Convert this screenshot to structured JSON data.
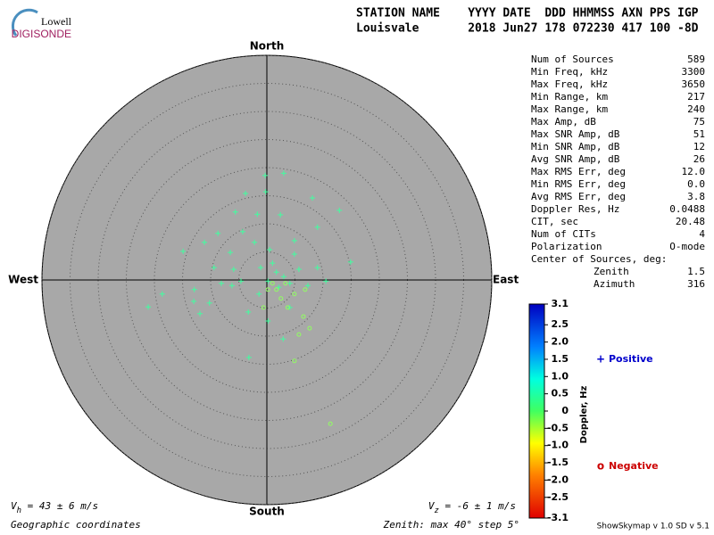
{
  "logo": {
    "top": "Lowell",
    "bottom": "DIGISONDE"
  },
  "header": {
    "line1": "STATION NAME    YYYY DATE  DDD HHMMSS AXN PPS IGP",
    "line2": "Louisvale       2018 Jun27 178 072230 417 100 -8D"
  },
  "stats": [
    [
      "Num of Sources",
      "589"
    ],
    [
      "Min Freq, kHz",
      "3300"
    ],
    [
      "Max Freq, kHz",
      "3650"
    ],
    [
      "Min Range, km",
      "217"
    ],
    [
      "Max Range, km",
      "240"
    ],
    [
      "Max Amp, dB",
      "75"
    ],
    [
      "Max SNR Amp, dB",
      "51"
    ],
    [
      "Min SNR Amp, dB",
      "12"
    ],
    [
      "Avg SNR Amp, dB",
      "26"
    ],
    [
      "Max RMS Err, deg",
      "12.0"
    ],
    [
      "Min RMS Err, deg",
      "0.0"
    ],
    [
      "Avg RMS Err, deg",
      "3.8"
    ],
    [
      "Doppler Res, Hz",
      "0.0488"
    ],
    [
      "CIT, sec",
      "20.48"
    ],
    [
      "Num of CITs",
      "4"
    ],
    [
      "Polarization",
      "O-mode"
    ]
  ],
  "center": {
    "title": "Center of Sources, deg:",
    "rows": [
      [
        "Zenith",
        "1.5"
      ],
      [
        "Azimuth",
        "316"
      ]
    ]
  },
  "chart_data": {
    "type": "scatter",
    "directions": {
      "north": "North",
      "south": "South",
      "east": "East",
      "west": "West"
    },
    "xlim": [
      -40,
      40
    ],
    "ylim": [
      -40,
      40
    ],
    "rings": [
      5,
      10,
      15,
      20,
      25,
      30,
      35,
      40
    ],
    "series": [
      {
        "name": "Positive",
        "marker": "+",
        "color": "#40ffa0",
        "legend_color": "#0000cc",
        "x": [
          -0.3,
          3.0,
          -0.2,
          -3.8,
          8.1,
          -1.7,
          -5.6,
          2.4,
          -8.7,
          12.9,
          9.0,
          -4.3,
          -11.1,
          -14.9,
          14.9,
          4.9,
          -6.5,
          -2.2,
          -9.4,
          -12.9,
          -10.2,
          -13.0,
          -18.6,
          -21.1,
          -6.2,
          -3.3,
          0.2,
          4.1,
          7.3,
          10.5,
          2.9,
          -3.2,
          -5.9,
          -1.1,
          1.0,
          1.7,
          3.0,
          0.2,
          4.1,
          2.1,
          -1.4,
          -4.6,
          5.7,
          4.9,
          0.5,
          -8.1,
          -11.9,
          9.0
        ],
        "y": [
          18.6,
          19.0,
          15.7,
          15.4,
          14.6,
          11.7,
          12.1,
          11.6,
          8.3,
          12.4,
          9.4,
          8.6,
          6.7,
          5.1,
          3.2,
          7.0,
          4.9,
          6.7,
          2.2,
          -1.7,
          -4.1,
          -3.8,
          -2.5,
          -4.8,
          -1.0,
          -5.7,
          -7.3,
          -4.9,
          -1.0,
          -0.2,
          -10.5,
          -13.8,
          1.9,
          2.2,
          3.0,
          1.4,
          0.6,
          -0.2,
          -0.6,
          -1.3,
          -2.5,
          -0.2,
          1.9,
          4.6,
          5.4,
          -0.6,
          -6.0,
          2.2
        ]
      },
      {
        "name": "Negative",
        "marker": "o",
        "color": "#90ff60",
        "legend_color": "#cc0000",
        "x": [
          3.3,
          1.7,
          4.9,
          6.5,
          5.7,
          7.6,
          4.9,
          11.3,
          0.2,
          2.5,
          -0.6,
          3.7,
          1.0,
          6.8
        ],
        "y": [
          -0.6,
          -1.7,
          -2.5,
          -6.5,
          -9.7,
          -8.6,
          -14.4,
          -25.6,
          -1.7,
          -3.3,
          -4.9,
          -4.9,
          -0.6,
          -1.7
        ]
      }
    ],
    "colorbar": {
      "title": "Doppler, Hz",
      "lim": [
        -3.1,
        3.1
      ],
      "ticks": [
        3.1,
        2.5,
        {
          "value": 2,
          "label": "2.0"
        },
        1.5,
        {
          "value": 1,
          "label": "1.0"
        },
        0.5,
        0,
        -0.5,
        {
          "value": -1,
          "label": "-1.0"
        },
        -1.5,
        {
          "value": -2,
          "label": "-2.0"
        },
        -2.5,
        -3.1
      ]
    },
    "vh": {
      "symbol": "V",
      "sub": "h",
      "text": " = 43 ± 6 m/s"
    },
    "vz": {
      "symbol": "V",
      "sub": "z",
      "text": " = -6 ± 1 m/s"
    },
    "coords": "Geographic coordinates",
    "zenith_note": "Zenith: max 40°  step 5°",
    "version": "ShowSkymap v 1.0  SD v 5.1"
  }
}
